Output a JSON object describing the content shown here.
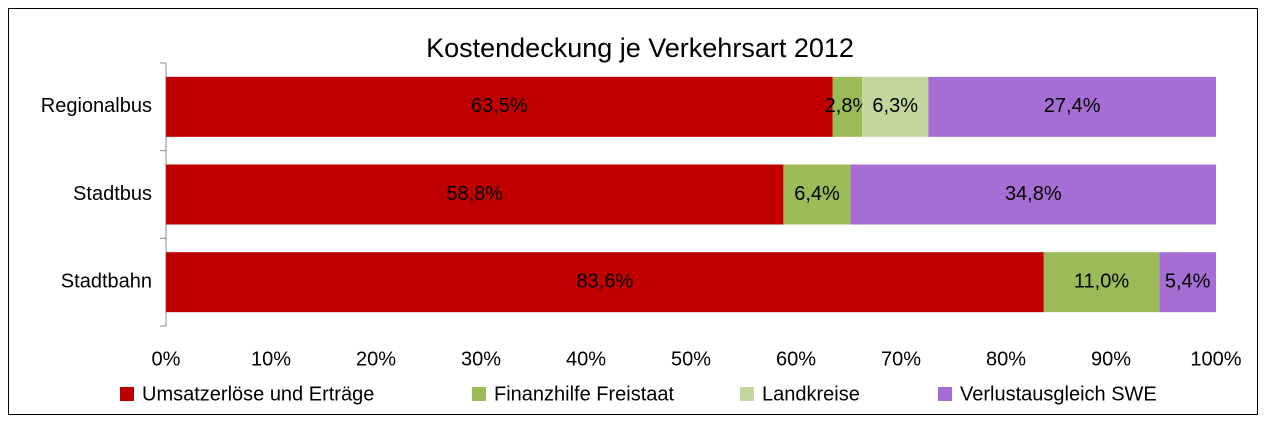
{
  "chart_data": {
    "type": "stacked-bar-horizontal",
    "title": "Kostendeckung je Verkehrsart 2012",
    "categories": [
      "Regionalbus",
      "Stadtbus",
      "Stadtbahn"
    ],
    "series": [
      {
        "name": "Umsatzerlöse und Erträge",
        "color": "#c00000",
        "values": [
          63.5,
          58.8,
          83.6
        ],
        "value_labels": [
          "63,5%",
          "58,8%",
          "83,6%"
        ]
      },
      {
        "name": "Finanzhilfe Freistaat",
        "color": "#9bbb59",
        "values": [
          2.8,
          6.4,
          11.0
        ],
        "value_labels": [
          "2,8%",
          "6,4%",
          "11,0%"
        ]
      },
      {
        "name": "Landkreise",
        "color": "#c3d69b",
        "values": [
          6.3,
          null,
          null
        ],
        "value_labels": [
          "6,3%",
          null,
          null
        ]
      },
      {
        "name": "Verlustausgleich SWE",
        "color": "#a66ed4",
        "values": [
          27.4,
          34.8,
          5.4
        ],
        "value_labels": [
          "27,4%",
          "34,8%",
          "5,4%"
        ]
      }
    ],
    "xlim": [
      0,
      100
    ],
    "xticks": [
      {
        "value": 0,
        "label": "0%"
      },
      {
        "value": 10,
        "label": "10%"
      },
      {
        "value": 20,
        "label": "20%"
      },
      {
        "value": 30,
        "label": "30%"
      },
      {
        "value": 40,
        "label": "40%"
      },
      {
        "value": 50,
        "label": "50%"
      },
      {
        "value": 60,
        "label": "60%"
      },
      {
        "value": 70,
        "label": "70%"
      },
      {
        "value": 80,
        "label": "80%"
      },
      {
        "value": 90,
        "label": "90%"
      },
      {
        "value": 100,
        "label": "100%"
      }
    ],
    "legend": "bottom"
  }
}
